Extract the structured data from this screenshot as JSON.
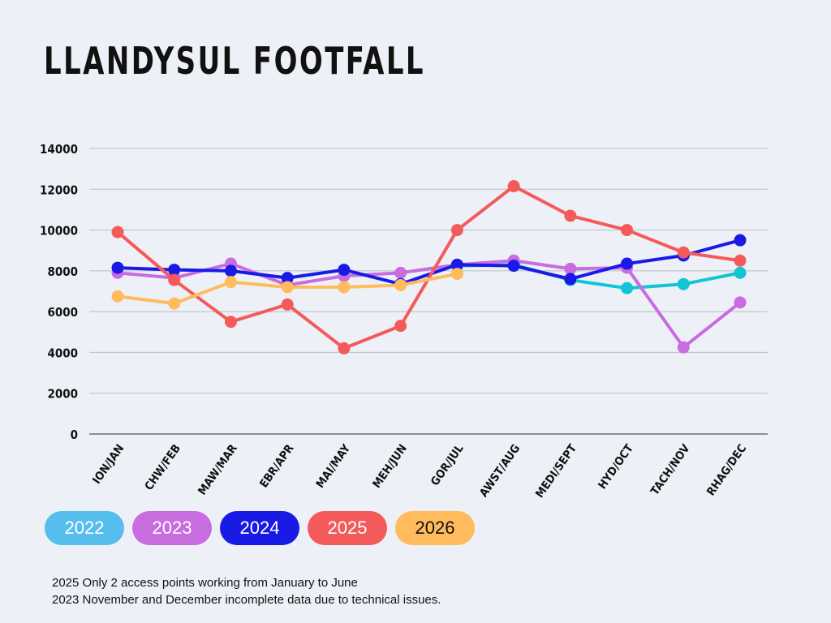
{
  "chart_data": {
    "type": "line",
    "title": "LLANDYSUL FOOTFALL",
    "categories": [
      "ION/JAN",
      "CHW/FEB",
      "MAW/MAR",
      "EBR/APR",
      "MAI/MAY",
      "MEH/JUN",
      "GOR/JUL",
      "AWST/AUG",
      "MEDI/SEPT",
      "HYD/OCT",
      "TACH/NOV",
      "RHAG/DEC"
    ],
    "ylim": [
      0,
      14000
    ],
    "yticks": [
      0,
      2000,
      4000,
      6000,
      8000,
      10000,
      12000,
      14000
    ],
    "grid": true,
    "legend_position": "bottom-left",
    "series": [
      {
        "name": "2022",
        "color": "#11C5D2",
        "legend_color": "#55BEEF",
        "legend_text_color": "#FFFFFF",
        "values": [
          null,
          null,
          null,
          null,
          null,
          null,
          8250,
          8300,
          7550,
          7150,
          7350,
          7900
        ]
      },
      {
        "name": "2023",
        "color": "#C86DE0",
        "legend_color": "#C86DE0",
        "legend_text_color": "#FFFFFF",
        "values": [
          7900,
          7650,
          8350,
          7300,
          7750,
          7900,
          8300,
          8500,
          8100,
          8150,
          4250,
          6450
        ]
      },
      {
        "name": "2024",
        "color": "#1A1AE6",
        "legend_color": "#1A1AE6",
        "legend_text_color": "#FFFFFF",
        "values": [
          8150,
          8050,
          8000,
          7650,
          8050,
          7350,
          8300,
          8250,
          7600,
          8350,
          8750,
          9500
        ]
      },
      {
        "name": "2025",
        "color": "#F45A5A",
        "legend_color": "#F45A5A",
        "legend_text_color": "#FFFFFF",
        "values": [
          9900,
          7550,
          5500,
          6350,
          4200,
          5300,
          10000,
          12150,
          10700,
          10000,
          8900,
          8500
        ]
      },
      {
        "name": "2026",
        "color": "#FFBB5C",
        "legend_color": "#FFBB5C",
        "legend_text_color": "#111111",
        "values": [
          6750,
          6400,
          7450,
          7200,
          7200,
          7300,
          7850,
          null,
          null,
          null,
          null,
          null
        ]
      }
    ]
  },
  "notes": [
    "2025 Only 2 access points working from January to June",
    "2023 November and December incomplete data due to technical issues."
  ]
}
